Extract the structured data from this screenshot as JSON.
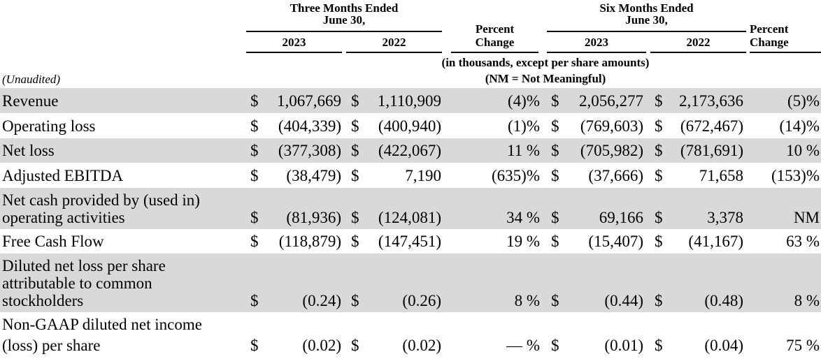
{
  "header": {
    "three_months": "Three Months Ended",
    "three_months_date": "June 30,",
    "six_months": "Six Months Ended",
    "six_months_date": "June 30,",
    "percent": "Percent",
    "change": "Change",
    "y2023": "2023",
    "y2022": "2022",
    "units_line1": "(in thousands, except per share amounts)",
    "units_line2": "(NM = Not Meaningful)",
    "unaudited": "(Unaudited)"
  },
  "rows": [
    {
      "label": [
        "Revenue"
      ],
      "q23d": "$",
      "q23": "1,067,669",
      "q22d": "$",
      "q22": "1,110,909",
      "qpct": "(4)%",
      "s23d": "$",
      "s23": "2,056,277",
      "s22d": "$",
      "s22": "2,173,636",
      "spct": "(5)%"
    },
    {
      "label": [
        "Operating loss"
      ],
      "q23d": "$",
      "q23": "(404,339)",
      "q22d": "$",
      "q22": "(400,940)",
      "qpct": "(1)%",
      "s23d": "$",
      "s23": "(769,603)",
      "s22d": "$",
      "s22": "(672,467)",
      "spct": "(14)%"
    },
    {
      "label": [
        "Net loss"
      ],
      "q23d": "$",
      "q23": "(377,308)",
      "q22d": "$",
      "q22": "(422,067)",
      "qpct": "11 %",
      "s23d": "$",
      "s23": "(705,982)",
      "s22d": "$",
      "s22": "(781,691)",
      "spct": "10 %"
    },
    {
      "label": [
        "Adjusted EBITDA"
      ],
      "q23d": "$",
      "q23": "(38,479)",
      "q22d": "$",
      "q22": "7,190",
      "qpct": "(635)%",
      "s23d": "$",
      "s23": "(37,666)",
      "s22d": "$",
      "s22": "71,658",
      "spct": "(153)%"
    },
    {
      "label": [
        "Net cash provided by (used in)",
        "operating activities"
      ],
      "q23d": "$",
      "q23": "(81,936)",
      "q22d": "$",
      "q22": "(124,081)",
      "qpct": "34 %",
      "s23d": "$",
      "s23": "69,166",
      "s22d": "$",
      "s22": "3,378",
      "spct": "NM"
    },
    {
      "label": [
        "Free Cash Flow"
      ],
      "q23d": "$",
      "q23": "(118,879)",
      "q22d": "$",
      "q22": "(147,451)",
      "qpct": "19 %",
      "s23d": "$",
      "s23": "(15,407)",
      "s22d": "$",
      "s22": "(41,167)",
      "spct": "63 %"
    },
    {
      "label": [
        "Diluted net loss per share",
        "attributable to common",
        "stockholders"
      ],
      "q23d": "$",
      "q23": "(0.24)",
      "q22d": "$",
      "q22": "(0.26)",
      "qpct": "8 %",
      "s23d": "$",
      "s23": "(0.44)",
      "s22d": "$",
      "s22": "(0.48)",
      "spct": "8 %"
    },
    {
      "label": [
        "Non-GAAP diluted net income",
        "(loss) per share"
      ],
      "q23d": "$",
      "q23": "(0.02)",
      "q22d": "$",
      "q22": "(0.02)",
      "qpct": "— %",
      "s23d": "$",
      "s23": "(0.01)",
      "s22d": "$",
      "s22": "(0.04)",
      "spct": "75 %"
    }
  ]
}
